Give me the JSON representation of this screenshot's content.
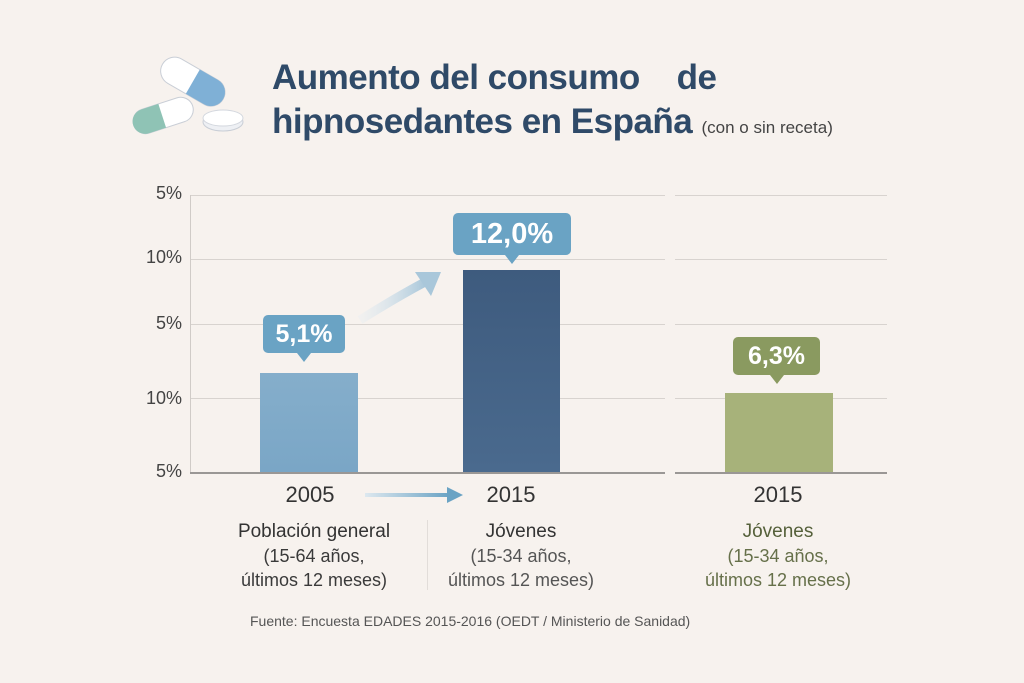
{
  "title": {
    "line1": "Aumento del consumo    de",
    "line2": "hipnosedantes en España",
    "note": "(con o sin receta)"
  },
  "chart_data": {
    "type": "bar",
    "title": "Aumento del consumo de hipnosedantes en España (con o sin receta)",
    "y_tick_labels": [
      "5%",
      "10%",
      "5%",
      "10%",
      "5%"
    ],
    "categories": [
      "2005",
      "2015",
      "2015"
    ],
    "values": [
      5.1,
      12.0,
      6.3
    ],
    "value_labels": [
      "5,1%",
      "12,0%",
      "6,3%"
    ],
    "groups": [
      {
        "title": "Población general",
        "detail1": "(15-64 años,",
        "detail2": "últimos 12 meses)"
      },
      {
        "title": "Jóvenes",
        "detail1": "(15-34 años,",
        "detail2": "últimos 12 meses)"
      },
      {
        "title": "Jóvenes",
        "detail1": "(15-34 años,",
        "detail2": "últimos 12 meses)"
      }
    ],
    "colors": [
      "#85aecb",
      "#425f82",
      "#a7b27a"
    ],
    "grid": true
  },
  "source": "Fuente: Encuesta EDADES 2015-2016 (OEDT / Ministerio de Sanidad)"
}
